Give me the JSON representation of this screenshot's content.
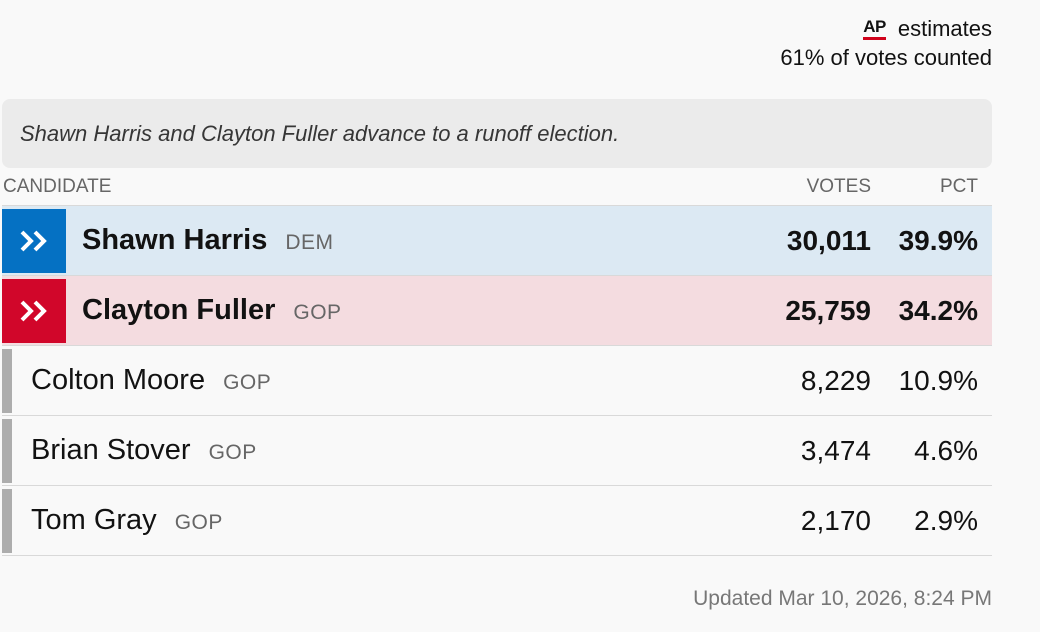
{
  "header": {
    "ap_logo": "AP",
    "estimates_label": "estimates",
    "votes_counted": "61% of votes counted"
  },
  "note": "Shawn Harris and Clayton Fuller advance to a runoff election.",
  "table": {
    "columns": {
      "candidate": "CANDIDATE",
      "votes": "VOTES",
      "pct": "PCT"
    },
    "rows": [
      {
        "name": "Shawn Harris",
        "party": "DEM",
        "votes": "30,011",
        "pct": "39.9%",
        "advance": true,
        "icon": "double-chevron-right-icon"
      },
      {
        "name": "Clayton Fuller",
        "party": "GOP",
        "votes": "25,759",
        "pct": "34.2%",
        "advance": true,
        "icon": "double-chevron-right-icon"
      },
      {
        "name": "Colton Moore",
        "party": "GOP",
        "votes": "8,229",
        "pct": "10.9%",
        "advance": false
      },
      {
        "name": "Brian Stover",
        "party": "GOP",
        "votes": "3,474",
        "pct": "4.6%",
        "advance": false
      },
      {
        "name": "Tom Gray",
        "party": "GOP",
        "votes": "2,170",
        "pct": "2.9%",
        "advance": false
      }
    ]
  },
  "colors": {
    "dem_accent": "#0571c3",
    "gop_accent": "#d1062a",
    "dem_row_bg": "#dce9f3",
    "gop_row_bg": "#f4dce0",
    "other_bar": "#adadad",
    "ap_underline": "#d0021b"
  },
  "updated": "Updated Mar 10, 2026, 8:24 PM"
}
